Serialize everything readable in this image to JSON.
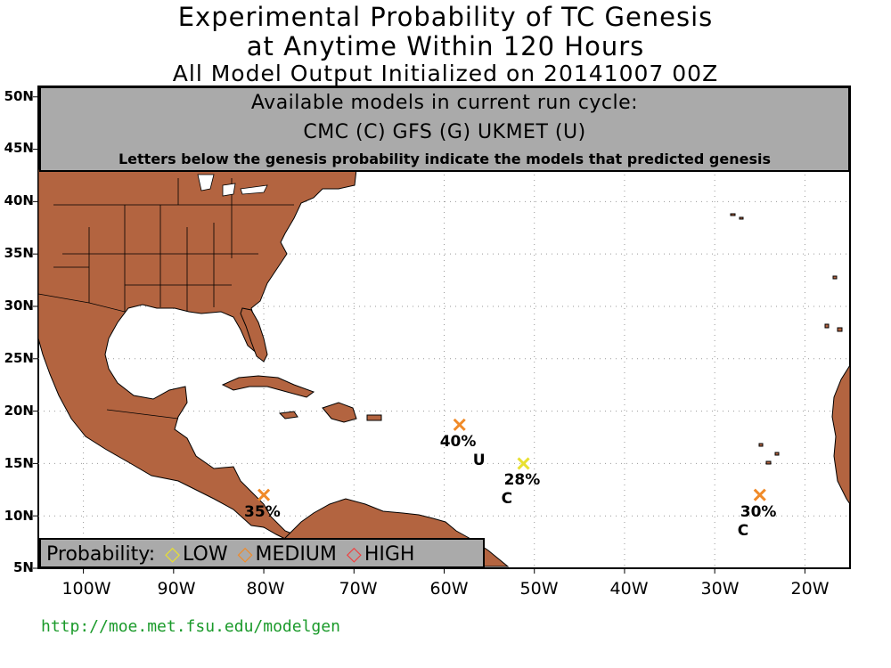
{
  "title": {
    "line1": "Experimental Probability of TC Genesis",
    "line2": "at Anytime Within 120 Hours",
    "line3": "All Model Output Initialized on 20141007 00Z"
  },
  "models_box": {
    "line1": "Available models in current run cycle:",
    "line2": "CMC (C) GFS (G)  UKMET (U)",
    "line3": "Letters below the genesis probability indicate the models that predicted genesis"
  },
  "legend": {
    "label": "Probability:",
    "items": [
      {
        "label": "LOW",
        "color": "#e8e030"
      },
      {
        "label": "MEDIUM",
        "color": "#f08a28"
      },
      {
        "label": "HIGH",
        "color": "#f04040"
      }
    ]
  },
  "axes": {
    "lat_labels": [
      "50N",
      "45N",
      "40N",
      "35N",
      "30N",
      "25N",
      "20N",
      "15N",
      "10N",
      "5N"
    ],
    "lon_labels": [
      "100W",
      "90W",
      "80W",
      "70W",
      "60W",
      "50W",
      "40W",
      "30W",
      "20W"
    ]
  },
  "storms": [
    {
      "id": "storm-1",
      "lon": -58.3,
      "lat": 18.7,
      "prob": "40%",
      "models": "U",
      "level": "MEDIUM",
      "color": "#f08a28"
    },
    {
      "id": "storm-2",
      "lon": -51.2,
      "lat": 15.0,
      "prob": "28%",
      "models": "C",
      "level": "LOW",
      "color": "#e8e030"
    },
    {
      "id": "storm-3",
      "lon": -80.0,
      "lat": 12.0,
      "prob": "35%",
      "models": "",
      "level": "MEDIUM",
      "color": "#f08a28"
    },
    {
      "id": "storm-4",
      "lon": -25.0,
      "lat": 12.0,
      "prob": "30%",
      "models": "C",
      "level": "MEDIUM",
      "color": "#f08a28"
    }
  ],
  "colors": {
    "land": "#b36440",
    "ocean": "#ffffff",
    "panel": "#aaaaaa",
    "url": "#1a9a2a"
  },
  "url": "http://moe.met.fsu.edu/modelgen"
}
